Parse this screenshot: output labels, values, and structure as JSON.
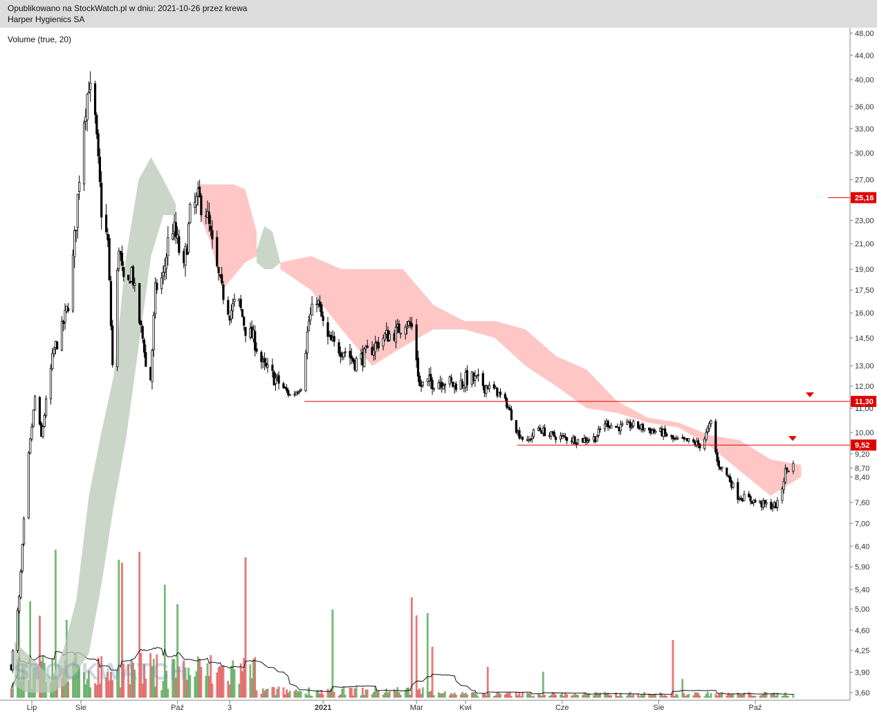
{
  "header": {
    "published": "Opublikowano na StockWatch.pl w dniu: 2021-10-26 przez krewa",
    "instrument": "Harper Hygienics SA"
  },
  "indicator_label": "Volume (true, 20)",
  "watermark": "STOCKWATCH",
  "colors": {
    "up": "#7fbf7f",
    "down": "#f08080",
    "cloud_bear": "#ffb3b3",
    "cloud_bull": "#b8c8b4",
    "level": "#e00000"
  },
  "chart_data": {
    "type": "candlestick",
    "y_scale": "log",
    "ylim": [
      3.45,
      49.0
    ],
    "y_ticks": [
      "48,00",
      "44,00",
      "40,00",
      "36,00",
      "33,00",
      "30,00",
      "27,00",
      "23,00",
      "21,00",
      "19,00",
      "17,50",
      "16,00",
      "14,50",
      "13,00",
      "12,00",
      "11,00",
      "10,00",
      "9,20",
      "8,70",
      "8,40",
      "7,60",
      "7,00",
      "6,40",
      "5,90",
      "5,40",
      "5,00",
      "4,60",
      "4,25",
      "3,90",
      "3,60"
    ],
    "x_ticks": [
      {
        "label": "Lip",
        "date": "2020-07"
      },
      {
        "label": "Sie",
        "date": "2020-08"
      },
      {
        "label": "Paź",
        "date": "2020-10"
      },
      {
        "label": "3",
        "date": "2020-11-03"
      },
      {
        "label": "2021",
        "date": "2021-01"
      },
      {
        "label": "Mar",
        "date": "2021-03"
      },
      {
        "label": "Kwi",
        "date": "2021-04"
      },
      {
        "label": "Cze",
        "date": "2021-06"
      },
      {
        "label": "Sie",
        "date": "2021-08"
      },
      {
        "label": "Paź",
        "date": "2021-10"
      }
    ],
    "levels": [
      {
        "label": "25,16",
        "value": 25.16
      },
      {
        "label": "11,30",
        "value": 11.3
      },
      {
        "label": "9,52",
        "value": 9.52
      }
    ],
    "price_path": [
      [
        "2020-06-18",
        4.0
      ],
      [
        "2020-06-23",
        5.2
      ],
      [
        "2020-06-28",
        8.6
      ],
      [
        "2020-07-03",
        11.5
      ],
      [
        "2020-07-07",
        9.8
      ],
      [
        "2020-07-11",
        11.8
      ],
      [
        "2020-07-15",
        13.8
      ],
      [
        "2020-07-20",
        15.0
      ],
      [
        "2020-07-25",
        17.0
      ],
      [
        "2020-07-29",
        23.0
      ],
      [
        "2020-08-02",
        33.0
      ],
      [
        "2020-08-06",
        39.5
      ],
      [
        "2020-08-10",
        34.0
      ],
      [
        "2020-08-14",
        24.0
      ],
      [
        "2020-08-18",
        21.0
      ],
      [
        "2020-08-21",
        13.0
      ],
      [
        "2020-08-25",
        21.0
      ],
      [
        "2020-08-29",
        17.0
      ],
      [
        "2020-09-02",
        19.0
      ],
      [
        "2020-09-06",
        16.0
      ],
      [
        "2020-09-10",
        14.0
      ],
      [
        "2020-09-13",
        11.0
      ],
      [
        "2020-09-17",
        17.5
      ],
      [
        "2020-09-22",
        18.5
      ],
      [
        "2020-09-27",
        23.0
      ],
      [
        "2020-10-01",
        21.0
      ],
      [
        "2020-10-05",
        19.0
      ],
      [
        "2020-10-09",
        23.5
      ],
      [
        "2020-10-14",
        25.0
      ],
      [
        "2020-10-19",
        24.0
      ],
      [
        "2020-10-24",
        20.0
      ],
      [
        "2020-10-29",
        17.5
      ],
      [
        "2020-11-03",
        16.0
      ],
      [
        "2020-11-08",
        17.0
      ],
      [
        "2020-11-13",
        15.0
      ],
      [
        "2020-11-18",
        14.5
      ],
      [
        "2020-11-24",
        13.0
      ],
      [
        "2020-11-30",
        12.5
      ],
      [
        "2020-12-06",
        12.0
      ],
      [
        "2020-12-12",
        11.5
      ],
      [
        "2020-12-18",
        12.0
      ],
      [
        "2020-12-23",
        15.5
      ],
      [
        "2020-12-28",
        17.0
      ],
      [
        "2021-01-03",
        14.5
      ],
      [
        "2021-01-09",
        14.0
      ],
      [
        "2021-01-15",
        13.8
      ],
      [
        "2021-01-21",
        13.2
      ],
      [
        "2021-01-27",
        13.5
      ],
      [
        "2021-02-02",
        14.0
      ],
      [
        "2021-02-09",
        14.6
      ],
      [
        "2021-02-16",
        14.8
      ],
      [
        "2021-02-22",
        15.5
      ],
      [
        "2021-02-27",
        15.0
      ],
      [
        "2021-03-03",
        12.0
      ],
      [
        "2021-03-10",
        12.2
      ],
      [
        "2021-03-18",
        12.3
      ],
      [
        "2021-03-26",
        12.0
      ],
      [
        "2021-04-03",
        12.4
      ],
      [
        "2021-04-12",
        12.1
      ],
      [
        "2021-04-20",
        11.8
      ],
      [
        "2021-04-27",
        11.2
      ],
      [
        "2021-05-04",
        10.0
      ],
      [
        "2021-05-10",
        9.6
      ],
      [
        "2021-05-16",
        10.2
      ],
      [
        "2021-05-24",
        9.9
      ],
      [
        "2021-06-02",
        9.8
      ],
      [
        "2021-06-12",
        9.7
      ],
      [
        "2021-06-22",
        9.8
      ],
      [
        "2021-06-28",
        10.4
      ],
      [
        "2021-07-06",
        10.2
      ],
      [
        "2021-07-16",
        10.3
      ],
      [
        "2021-07-26",
        10.1
      ],
      [
        "2021-08-03",
        10.0
      ],
      [
        "2021-08-11",
        9.7
      ],
      [
        "2021-08-20",
        9.65
      ],
      [
        "2021-08-28",
        9.5
      ],
      [
        "2021-09-03",
        10.4
      ],
      [
        "2021-09-07",
        8.9
      ],
      [
        "2021-09-14",
        8.4
      ],
      [
        "2021-09-20",
        7.8
      ],
      [
        "2021-09-27",
        7.7
      ],
      [
        "2021-10-05",
        7.55
      ],
      [
        "2021-10-12",
        7.5
      ],
      [
        "2021-10-16",
        7.55
      ],
      [
        "2021-10-20",
        8.6
      ],
      [
        "2021-10-25",
        8.8
      ]
    ],
    "cloud_segments": [
      {
        "color": "bull",
        "from": "2020-06-20",
        "to": "2020-09-30",
        "top": [
          4.4,
          4.2,
          4.0,
          3.8,
          4.3,
          5.2,
          7.8,
          10.0,
          12.5,
          20.0,
          27.0,
          29.5,
          27.0,
          24.5
        ],
        "bottom": [
          3.7,
          3.6,
          3.6,
          3.6,
          3.7,
          3.9,
          4.2,
          5.5,
          7.5,
          9.8,
          14.0,
          20.0,
          23.5,
          23.5
        ]
      },
      {
        "color": "bear",
        "from": "2020-10-15",
        "to": "2020-11-20",
        "top": [
          26.5,
          26.5,
          26.5,
          26.5,
          26.0,
          22.0
        ],
        "bottom": [
          23.5,
          21.0,
          17.5,
          18.5,
          19.5,
          20.0
        ]
      },
      {
        "color": "bull",
        "from": "2020-11-20",
        "to": "2020-12-05",
        "top": [
          20.5,
          22.5,
          22.0,
          19.5
        ],
        "bottom": [
          19.5,
          19.0,
          19.0,
          19.5
        ]
      },
      {
        "color": "bear",
        "from": "2020-12-05",
        "to": "2021-10-30",
        "top": [
          19.5,
          20.0,
          19.0,
          19.0,
          19.0,
          16.5,
          15.5,
          15.5,
          15.0,
          13.5,
          12.8,
          11.3,
          10.6,
          10.4,
          9.9,
          9.7,
          9.0,
          8.8
        ],
        "bottom": [
          19.0,
          17.5,
          15.0,
          13.0,
          14.0,
          15.0,
          15.0,
          14.5,
          13.0,
          12.0,
          11.0,
          10.8,
          10.4,
          10.2,
          9.5,
          8.6,
          7.8,
          8.4
        ]
      }
    ],
    "volume": {
      "note": "relative bar heights (0-1) shown at bottom"
    }
  }
}
